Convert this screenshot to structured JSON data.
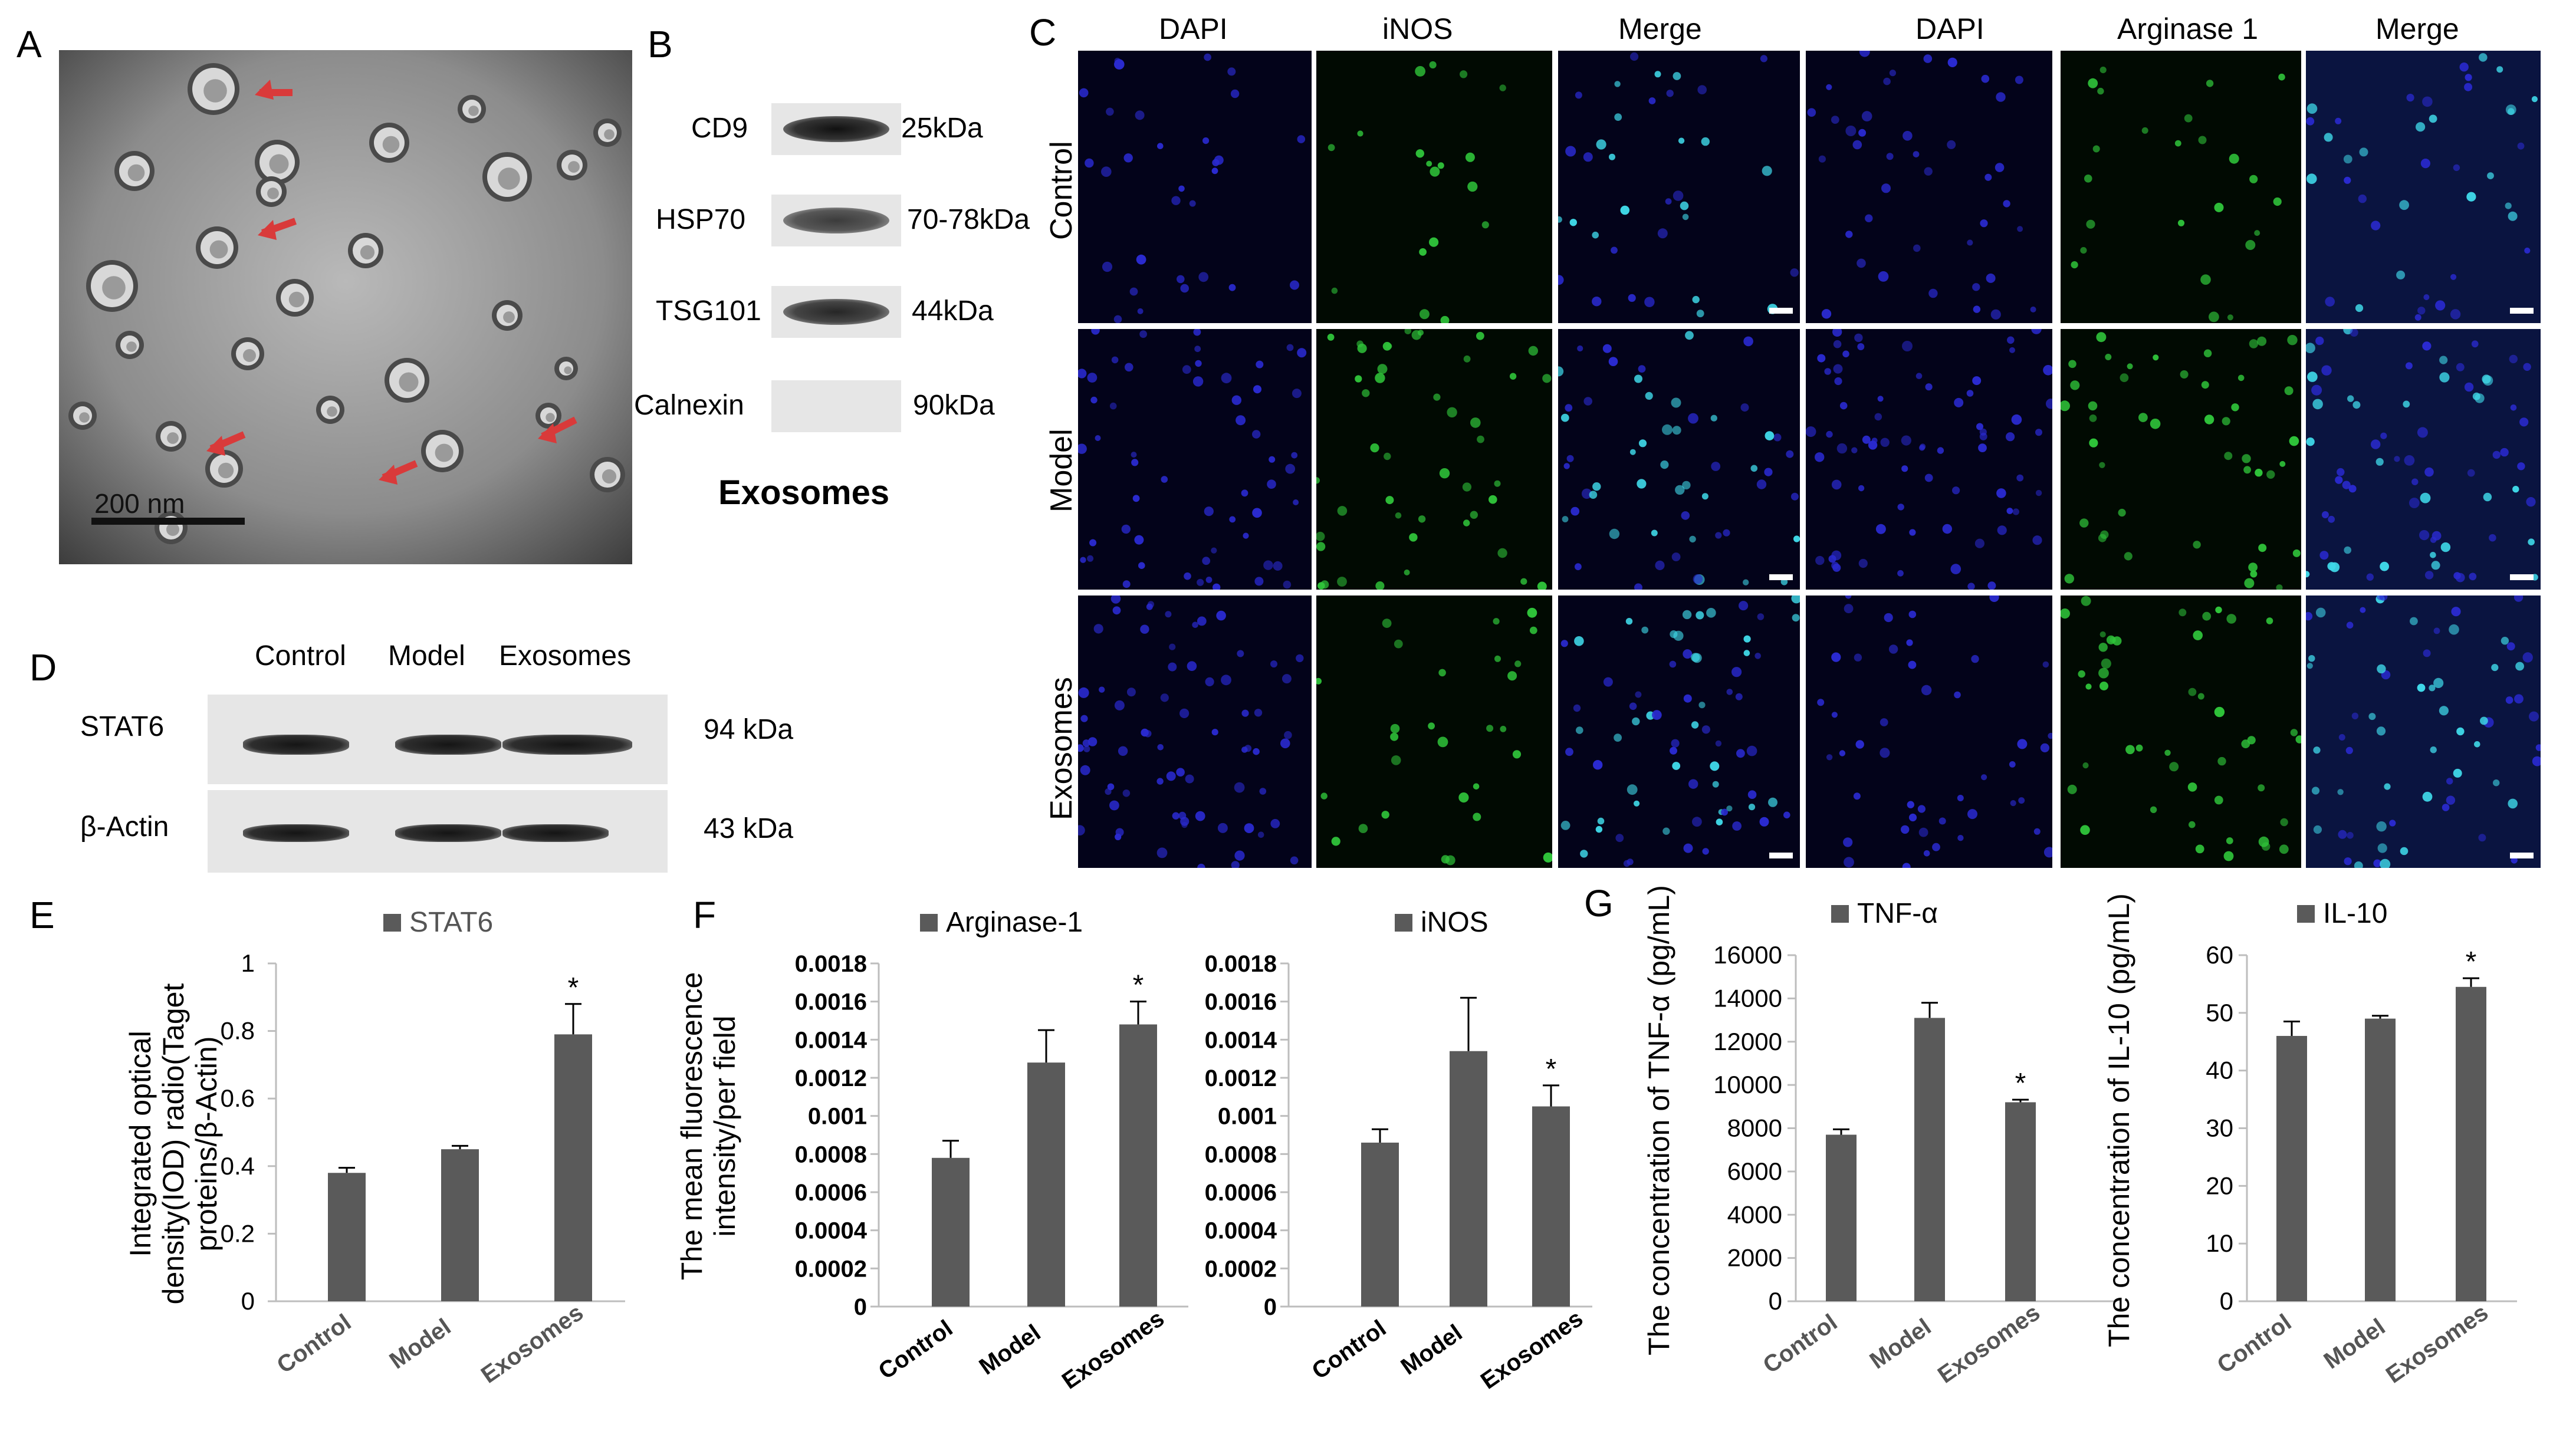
{
  "panels": {
    "a": "A",
    "b": "B",
    "c": "C",
    "d": "D",
    "e": "E",
    "f": "F",
    "g": "G"
  },
  "panel_a": {
    "scale_bar": "200 nm"
  },
  "panel_b": {
    "rows": [
      {
        "protein": "CD9",
        "size": "25kDa",
        "band": 1.0
      },
      {
        "protein": "HSP70",
        "size": "70-78kDa",
        "band": 0.8
      },
      {
        "protein": "TSG101",
        "size": "44kDa",
        "band": 0.9
      },
      {
        "protein": "Calnexin",
        "size": "90kDa",
        "band": 0.0
      }
    ],
    "caption": "Exosomes"
  },
  "panel_c": {
    "column_headers": [
      "DAPI",
      "iNOS",
      "Merge",
      "DAPI",
      "Arginase 1",
      "Merge"
    ],
    "row_labels": [
      "Control",
      "Model",
      "Exosomes"
    ]
  },
  "panel_d": {
    "columns": [
      "Control",
      "Model",
      "Exosomes"
    ],
    "rows": [
      {
        "protein": "STAT6",
        "size": "94 kDa"
      },
      {
        "protein": "β-Actin",
        "size": "43 kDa"
      }
    ]
  },
  "colors": {
    "bar": "#5a5a5a",
    "blot_bg": "#e6e6e6",
    "band": "#222222",
    "micro_bg": "#03031a",
    "dapi": "#2a2ad0",
    "green": "#2fc43a",
    "cyan": "#3fd8e8",
    "arrow": "#d93a3a"
  },
  "chart_data": [
    {
      "id": "E",
      "type": "bar",
      "legend": "STAT6",
      "categories": [
        "Control",
        "Model",
        "Exosomes"
      ],
      "values": [
        0.38,
        0.45,
        0.79
      ],
      "errors": [
        0.015,
        0.01,
        0.09
      ],
      "sig": [
        false,
        false,
        true
      ],
      "ylim": [
        0,
        1
      ],
      "yticks": [
        "0",
        "0.2",
        "0.4",
        "0.6",
        "0.8",
        "1"
      ],
      "ylabel": "Integrated optical density(IOD) radio(Taget proteins/β-Actin)"
    },
    {
      "id": "F1",
      "type": "bar",
      "legend": "Arginase-1",
      "categories": [
        "Control",
        "Model",
        "Exosomes"
      ],
      "values": [
        0.00078,
        0.00128,
        0.00148
      ],
      "errors": [
        9e-05,
        0.00017,
        0.00012
      ],
      "sig": [
        false,
        false,
        true
      ],
      "ylim": [
        0,
        0.0018
      ],
      "yticks": [
        "0",
        "0.0002",
        "0.0004",
        "0.0006",
        "0.0008",
        "0.001",
        "0.0012",
        "0.0014",
        "0.0016",
        "0.0018"
      ],
      "ylabel": "The mean fluorescence intensity/per field"
    },
    {
      "id": "F2",
      "type": "bar",
      "legend": "iNOS",
      "categories": [
        "Control",
        "Model",
        "Exosomes"
      ],
      "values": [
        0.00086,
        0.00134,
        0.00105
      ],
      "errors": [
        7e-05,
        0.00028,
        0.00011
      ],
      "sig": [
        false,
        false,
        true
      ],
      "ylim": [
        0,
        0.0018
      ],
      "yticks": [
        "0",
        "0.0002",
        "0.0004",
        "0.0006",
        "0.0008",
        "0.001",
        "0.0012",
        "0.0014",
        "0.0016",
        "0.0018"
      ],
      "ylabel": ""
    },
    {
      "id": "G1",
      "type": "bar",
      "legend": "TNF-α",
      "categories": [
        "Control",
        "Model",
        "Exosomes"
      ],
      "values": [
        7700,
        13100,
        9200
      ],
      "errors": [
        250,
        700,
        120
      ],
      "sig": [
        false,
        false,
        true
      ],
      "ylim": [
        0,
        16000
      ],
      "yticks": [
        "0",
        "2000",
        "4000",
        "6000",
        "8000",
        "10000",
        "12000",
        "14000",
        "16000"
      ],
      "ylabel": "The concentration of TNF-α (pg/mL)"
    },
    {
      "id": "G2",
      "type": "bar",
      "legend": "IL-10",
      "categories": [
        "Control",
        "Model",
        "Exosomes"
      ],
      "values": [
        46,
        49,
        54.5
      ],
      "errors": [
        2.5,
        0.5,
        1.5
      ],
      "sig": [
        false,
        false,
        true
      ],
      "ylim": [
        0,
        60
      ],
      "yticks": [
        "0",
        "10",
        "20",
        "30",
        "40",
        "50",
        "60"
      ],
      "ylabel": "The concentration of IL-10 (pg/mL)"
    }
  ]
}
